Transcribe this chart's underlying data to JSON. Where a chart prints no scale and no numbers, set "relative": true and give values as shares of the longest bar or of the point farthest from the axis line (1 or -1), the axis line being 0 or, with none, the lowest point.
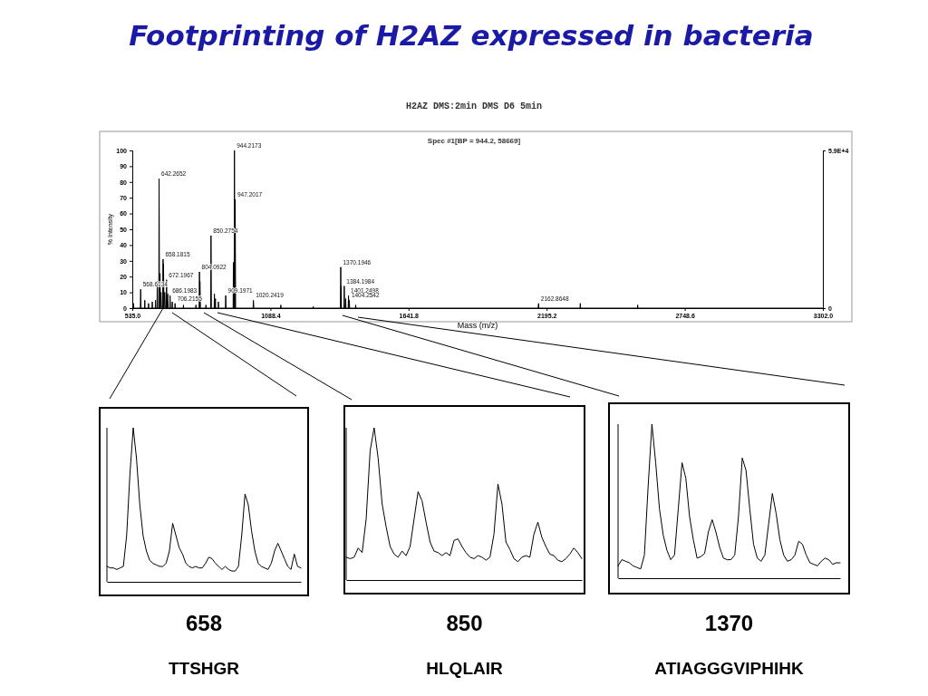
{
  "chart_data": [
    {
      "type": "line",
      "title": "Footprinting of H2AZ expressed in bacteria",
      "subtitle": "H2AZ DMS:2min DMS D6 5min",
      "xlabel": "Mass (m/z)",
      "ylabel": "% Intensity",
      "x": [
        536,
        540,
        541,
        567,
        568.6134,
        570,
        584,
        585,
        586,
        599,
        600,
        601,
        614,
        615,
        616,
        627,
        628,
        629,
        634,
        635,
        636,
        641,
        642.2652,
        644,
        646,
        648,
        650,
        652,
        657,
        658.1815,
        659,
        660,
        662,
        665,
        667,
        671,
        672.1967,
        674,
        677,
        679,
        685,
        686.1983,
        688,
        694,
        695,
        696,
        705,
        706.2155,
        708,
        739,
        740,
        741,
        789,
        790,
        791,
        803,
        804.0922,
        805,
        806,
        808,
        829,
        830,
        831,
        849,
        850.2754,
        852,
        863,
        864,
        865,
        867,
        868,
        869,
        879,
        880,
        881,
        908,
        909.1971,
        911,
        939,
        940,
        941,
        943,
        944.2173,
        946,
        947.2017,
        949,
        1019,
        1020.2419,
        1022,
        1129,
        1130,
        1131,
        1259,
        1260,
        1261,
        1369,
        1370.1946,
        1371,
        1372,
        1373,
        1383,
        1384.1984,
        1386,
        1389,
        1390,
        1391,
        1400,
        1401.2498,
        1403,
        1404.2542,
        1406,
        1429,
        1430,
        1431,
        2161,
        2162.8648,
        2164,
        2329,
        2330,
        2331,
        2559,
        2560,
        2561,
        3300
      ],
      "values": [
        0,
        3,
        0,
        0,
        12,
        0,
        0,
        5,
        0,
        0,
        3,
        0,
        0,
        4,
        0,
        0,
        5,
        0,
        0,
        17,
        0,
        0,
        82,
        0,
        22,
        0,
        10,
        0,
        0,
        31,
        0,
        28,
        0,
        10,
        0,
        0,
        18,
        0,
        9,
        0,
        0,
        8,
        0,
        0,
        4,
        0,
        0,
        3,
        0,
        0,
        2,
        0,
        0,
        2,
        0,
        0,
        23,
        0,
        17,
        0,
        0,
        2,
        0,
        0,
        46,
        0,
        0,
        9,
        0,
        0,
        6,
        0,
        0,
        4,
        0,
        0,
        8,
        0,
        0,
        29,
        0,
        0,
        100,
        0,
        69,
        0,
        0,
        5,
        0,
        0,
        2,
        0,
        0,
        1,
        0,
        0,
        26,
        0,
        14,
        0,
        0,
        14,
        0,
        0,
        6,
        0,
        0,
        8,
        0,
        5,
        0,
        0,
        2,
        0,
        0,
        3,
        0,
        0,
        3,
        0,
        0,
        2,
        0,
        0
      ],
      "color": "#000000",
      "xlim": [
        535,
        3302
      ],
      "ylim": [
        0,
        100
      ],
      "xticks": [
        {
          "value": 535,
          "label": "535.0"
        },
        1088.4,
        1641.8,
        2195.2,
        2748.6,
        {
          "value": 3302,
          "label": "3302.0"
        }
      ],
      "yticks": [
        0,
        10,
        20,
        30,
        40,
        50,
        60,
        70,
        80,
        90,
        100
      ],
      "y2lim": [
        0,
        58669
      ],
      "y2ticks": [
        0,
        {
          "value": 58669,
          "label": "5.9E+4"
        }
      ],
      "grid": false,
      "legend": false,
      "annotations": [
        "Spec #1[BP = 944.2, 58669]",
        {
          "text": "568.6134",
          "x": 568.6134,
          "y": 12
        },
        {
          "text": "642.2652",
          "x": 642.2652,
          "y": 82
        },
        {
          "text": "658.1815",
          "x": 658.1815,
          "y": 31
        },
        {
          "text": "672.1967",
          "x": 672.1967,
          "y": 18
        },
        {
          "text": "686.1983",
          "x": 686.1983,
          "y": 8
        },
        {
          "text": "706.2155",
          "x": 706.2155,
          "y": 3
        },
        {
          "text": "804.0922",
          "x": 804.0922,
          "y": 23
        },
        {
          "text": "850.2754",
          "x": 850.2754,
          "y": 46
        },
        {
          "text": "909.1971",
          "x": 909.1971,
          "y": 8
        },
        {
          "text": "944.2173",
          "x": 944.2173,
          "y": 100
        },
        {
          "text": "947.2017",
          "x": 947.2017,
          "y": 69
        },
        {
          "text": "1020.2419",
          "x": 1020.2419,
          "y": 5
        },
        {
          "text": "1370.1946",
          "x": 1370.1946,
          "y": 26
        },
        {
          "text": "1384.1984",
          "x": 1384.1984,
          "y": 14
        },
        {
          "text": "1401.2498",
          "x": 1401.2498,
          "y": 8
        },
        {
          "text": "1404.2542",
          "x": 1404.2542,
          "y": 5
        },
        {
          "text": "2162.8648",
          "x": 2162.8648,
          "y": 3
        }
      ]
    },
    {
      "type": "line",
      "relative": true,
      "color": "#000000",
      "annotations": [
        "658",
        "TTSHGR"
      ],
      "categories": [
        null,
        null,
        null,
        null,
        null,
        null,
        null,
        null,
        null,
        null,
        null,
        null,
        null,
        null,
        null,
        null,
        null,
        null,
        null,
        null,
        null,
        null,
        null,
        null,
        null,
        null,
        null,
        null,
        null,
        null,
        null,
        null,
        null,
        null,
        null,
        null,
        null,
        null,
        null,
        null,
        null,
        null,
        null,
        null,
        null,
        null,
        null,
        null,
        null,
        null,
        null,
        null,
        null,
        null,
        null,
        null,
        null,
        null,
        null,
        null
      ],
      "values": [
        0.1,
        0.09,
        0.09,
        0.08,
        0.09,
        0.1,
        0.3,
        0.7,
        1,
        0.8,
        0.5,
        0.3,
        0.2,
        0.14,
        0.12,
        0.11,
        0.1,
        0.1,
        0.12,
        0.2,
        0.38,
        0.3,
        0.22,
        0.18,
        0.12,
        0.1,
        0.09,
        0.1,
        0.09,
        0.09,
        0.12,
        0.16,
        0.15,
        0.12,
        0.1,
        0.08,
        0.1,
        0.08,
        0.07,
        0.07,
        0.1,
        0.3,
        0.57,
        0.5,
        0.33,
        0.2,
        0.12,
        0.1,
        0.09,
        0.08,
        0.12,
        0.2,
        0.25,
        0.2,
        0.15,
        0.1,
        0.08,
        0.18,
        0.1,
        0.09
      ]
    },
    {
      "type": "line",
      "relative": true,
      "color": "#000000",
      "annotations": [
        "850",
        "HLQLAIR"
      ],
      "categories": [
        null,
        null,
        null,
        null,
        null,
        null,
        null,
        null,
        null,
        null,
        null,
        null,
        null,
        null,
        null,
        null,
        null,
        null,
        null,
        null,
        null,
        null,
        null,
        null,
        null,
        null,
        null,
        null,
        null,
        null,
        null,
        null,
        null,
        null,
        null,
        null,
        null,
        null,
        null,
        null,
        null,
        null,
        null,
        null,
        null,
        null,
        null,
        null,
        null,
        null,
        null,
        null,
        null,
        null,
        null,
        null,
        null,
        null,
        null,
        null
      ],
      "values": [
        0.15,
        0.14,
        0.15,
        0.21,
        0.18,
        0.4,
        0.85,
        1,
        0.8,
        0.5,
        0.35,
        0.22,
        0.17,
        0.15,
        0.19,
        0.16,
        0.22,
        0.4,
        0.58,
        0.52,
        0.38,
        0.25,
        0.19,
        0.18,
        0.16,
        0.18,
        0.16,
        0.26,
        0.27,
        0.22,
        0.18,
        0.15,
        0.14,
        0.16,
        0.15,
        0.13,
        0.15,
        0.3,
        0.63,
        0.5,
        0.25,
        0.2,
        0.14,
        0.12,
        0.15,
        0.16,
        0.15,
        0.3,
        0.38,
        0.28,
        0.22,
        0.17,
        0.16,
        0.13,
        0.12,
        0.14,
        0.17,
        0.21,
        0.18,
        0.14
      ]
    },
    {
      "type": "line",
      "relative": true,
      "color": "#000000",
      "annotations": [
        "1370",
        "ATIAGGGVIPHIHK"
      ],
      "categories": [
        null,
        null,
        null,
        null,
        null,
        null,
        null,
        null,
        null,
        null,
        null,
        null,
        null,
        null,
        null,
        null,
        null,
        null,
        null,
        null,
        null,
        null,
        null,
        null,
        null,
        null,
        null,
        null,
        null,
        null,
        null,
        null,
        null,
        null,
        null,
        null,
        null,
        null,
        null,
        null,
        null,
        null,
        null,
        null,
        null,
        null,
        null,
        null,
        null,
        null,
        null,
        null,
        null,
        null,
        null,
        null,
        null,
        null,
        null,
        null
      ],
      "values": [
        0.08,
        0.12,
        0.11,
        0.1,
        0.08,
        0.07,
        0.06,
        0.15,
        0.6,
        1,
        0.75,
        0.45,
        0.28,
        0.18,
        0.12,
        0.15,
        0.45,
        0.75,
        0.65,
        0.4,
        0.25,
        0.13,
        0.14,
        0.16,
        0.3,
        0.38,
        0.3,
        0.2,
        0.13,
        0.12,
        0.12,
        0.15,
        0.4,
        0.78,
        0.7,
        0.45,
        0.22,
        0.13,
        0.11,
        0.15,
        0.35,
        0.55,
        0.42,
        0.25,
        0.15,
        0.11,
        0.12,
        0.15,
        0.24,
        0.22,
        0.15,
        0.1,
        0.09,
        0.08,
        0.11,
        0.13,
        0.12,
        0.09,
        0.1,
        0.1
      ]
    }
  ]
}
